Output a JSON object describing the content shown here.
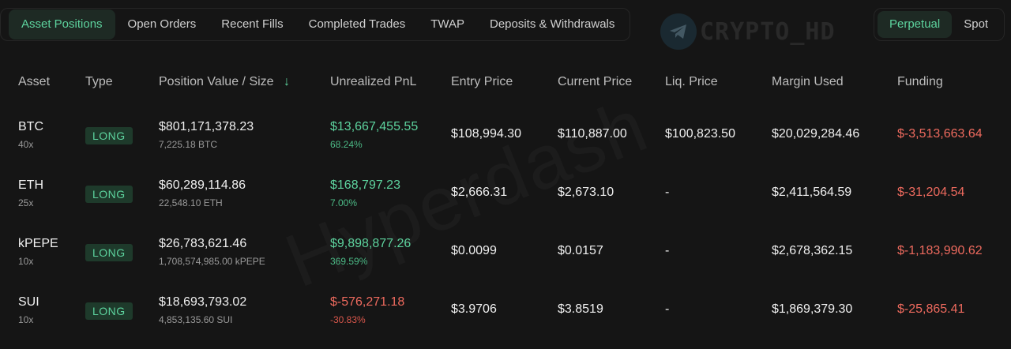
{
  "tabs": [
    "Asset Positions",
    "Open Orders",
    "Recent Fills",
    "Completed Trades",
    "TWAP",
    "Deposits & Withdrawals"
  ],
  "watermark": {
    "text": "CRYPTO_HD",
    "icon": "telegram-icon",
    "bg_text": "Hyperdash"
  },
  "market_toggle": [
    "Perpetual",
    "Spot"
  ],
  "columns": {
    "asset": "Asset",
    "type": "Type",
    "position": "Position Value / Size",
    "sort_icon": "↓",
    "upnl": "Unrealized PnL",
    "entry": "Entry Price",
    "current": "Current Price",
    "liq": "Liq. Price",
    "margin": "Margin Used",
    "funding": "Funding"
  },
  "positions": [
    {
      "asset": "BTC",
      "leverage": "40x",
      "type": "LONG",
      "value": "$801,171,378.23",
      "size": "7,225.18 BTC",
      "upnl": "$13,667,455.55",
      "upnl_pct": "68.24%",
      "entry": "$108,994.30",
      "current": "$110,887.00",
      "liq": "$100,823.50",
      "margin": "$20,029,284.46",
      "funding": "$-3,513,663.64"
    },
    {
      "asset": "ETH",
      "leverage": "25x",
      "type": "LONG",
      "value": "$60,289,114.86",
      "size": "22,548.10 ETH",
      "upnl": "$168,797.23",
      "upnl_pct": "7.00%",
      "entry": "$2,666.31",
      "current": "$2,673.10",
      "liq": "-",
      "margin": "$2,411,564.59",
      "funding": "$-31,204.54"
    },
    {
      "asset": "kPEPE",
      "leverage": "10x",
      "type": "LONG",
      "value": "$26,783,621.46",
      "size": "1,708,574,985.00 kPEPE",
      "upnl": "$9,898,877.26",
      "upnl_pct": "369.59%",
      "entry": "$0.0099",
      "current": "$0.0157",
      "liq": "-",
      "margin": "$2,678,362.15",
      "funding": "$-1,183,990.62"
    },
    {
      "asset": "SUI",
      "leverage": "10x",
      "type": "LONG",
      "value": "$18,693,793.02",
      "size": "4,853,135.60 SUI",
      "upnl": "$-576,271.18",
      "upnl_pct": "-30.83%",
      "entry": "$3.9706",
      "current": "$3.8519",
      "liq": "-",
      "margin": "$1,869,379.30",
      "funding": "$-25,865.41"
    }
  ],
  "colors": {
    "positive": "#5dd39e",
    "negative": "#ee6a5e",
    "background": "#151515"
  }
}
